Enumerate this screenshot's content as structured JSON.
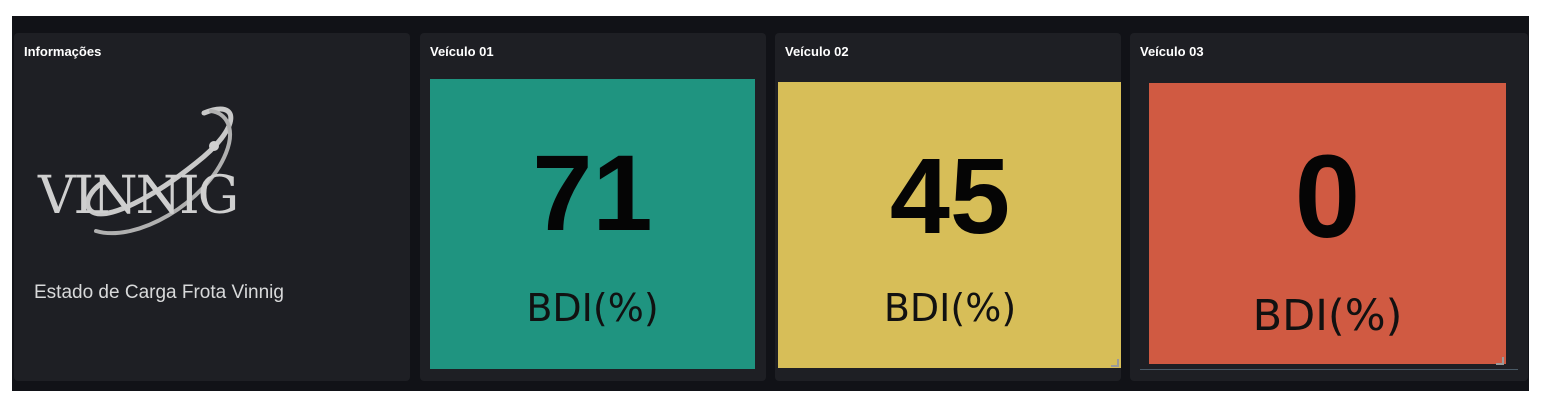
{
  "panels": {
    "info": {
      "title": "Informações",
      "logo_text": "VINNIG",
      "text": "Estado de Carga Frota Vinnig"
    },
    "vehicles": [
      {
        "title": "Veículo 01",
        "value": "71",
        "unit": "BDI(%)",
        "color": "#1f9480"
      },
      {
        "title": "Veículo 02",
        "value": "45",
        "unit": "BDI(%)",
        "color": "#d7be58"
      },
      {
        "title": "Veículo 03",
        "value": "0",
        "unit": "BDI(%)",
        "color": "#d05a42"
      }
    ]
  },
  "colors": {
    "dashboard_bg": "#111217",
    "panel_bg": "#1e1f24",
    "title_text": "#ffffff",
    "info_text": "#d8d9da"
  }
}
